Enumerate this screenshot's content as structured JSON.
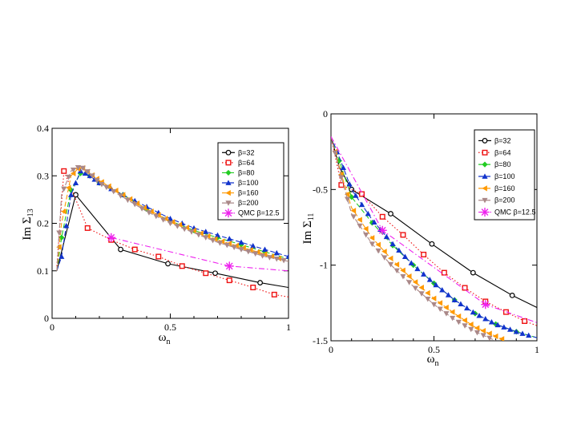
{
  "chart_data": [
    {
      "type": "line",
      "ylabel": "Im Σ13",
      "xlabel": "ωn",
      "xlim": [
        0,
        1
      ],
      "ylim": [
        0,
        0.4
      ],
      "xticks": [
        "0",
        "0.5",
        "1"
      ],
      "yticks": [
        "0",
        "0.1",
        "0.2",
        "0.3",
        "0.4"
      ],
      "grid": false,
      "legend_position": "top-right",
      "series": [
        {
          "name": "β=32",
          "color": "#000000",
          "marker": "circle",
          "dash": "solid",
          "x": [
            0.02,
            0.1,
            0.29,
            0.49,
            0.69,
            0.88,
            1.0
          ],
          "y": [
            0.1,
            0.26,
            0.145,
            0.115,
            0.095,
            0.075,
            0.065
          ],
          "mx": [
            0.1,
            0.29,
            0.49,
            0.69,
            0.88
          ]
        },
        {
          "name": "β=64",
          "color": "#ee1111",
          "marker": "square",
          "dash": "dotted",
          "x": [
            0.02,
            0.05,
            0.15,
            0.25,
            0.35,
            0.45,
            0.55,
            0.65,
            0.75,
            0.85,
            0.94,
            1.0
          ],
          "y": [
            0.11,
            0.31,
            0.19,
            0.165,
            0.145,
            0.13,
            0.11,
            0.095,
            0.08,
            0.065,
            0.05,
            0.045
          ],
          "mx": [
            0.05,
            0.15,
            0.25,
            0.35,
            0.45,
            0.55,
            0.65,
            0.75,
            0.85,
            0.94
          ]
        },
        {
          "name": "β=80",
          "color": "#22cc22",
          "marker": "diamond",
          "dash": "dashed",
          "x": [
            0.02,
            0.04,
            0.08,
            0.12,
            0.16,
            0.2,
            0.3,
            0.4,
            0.5,
            0.6,
            0.7,
            0.8,
            0.9,
            1.0
          ],
          "y": [
            0.1,
            0.17,
            0.27,
            0.305,
            0.3,
            0.285,
            0.26,
            0.23,
            0.205,
            0.185,
            0.17,
            0.155,
            0.14,
            0.125
          ],
          "mx": [
            0.04,
            0.08,
            0.12,
            0.16,
            0.2,
            0.3,
            0.4,
            0.5,
            0.6,
            0.7,
            0.8,
            0.9
          ]
        },
        {
          "name": "β=100",
          "color": "#1133cc",
          "marker": "triangle-up",
          "dash": "dashed",
          "x": [
            0.02,
            0.04,
            0.08,
            0.12,
            0.16,
            0.2,
            0.3,
            0.4,
            0.5,
            0.6,
            0.7,
            0.8,
            0.9,
            1.0
          ],
          "y": [
            0.1,
            0.13,
            0.26,
            0.31,
            0.3,
            0.285,
            0.26,
            0.235,
            0.21,
            0.19,
            0.175,
            0.16,
            0.145,
            0.13
          ],
          "mx": [
            0.04,
            0.06,
            0.08,
            0.1,
            0.12,
            0.14,
            0.16,
            0.18,
            0.2,
            0.25,
            0.3,
            0.35,
            0.4,
            0.45,
            0.5,
            0.55,
            0.6,
            0.65,
            0.7,
            0.75,
            0.8,
            0.85,
            0.9,
            0.95,
            1.0
          ]
        },
        {
          "name": "β=160",
          "color": "#ff9900",
          "marker": "triangle-left",
          "dash": "dashed",
          "x": [
            0.02,
            0.04,
            0.08,
            0.12,
            0.16,
            0.2,
            0.3,
            0.4,
            0.5,
            0.6,
            0.7,
            0.8,
            0.9,
            1.0
          ],
          "y": [
            0.1,
            0.2,
            0.3,
            0.32,
            0.305,
            0.29,
            0.26,
            0.23,
            0.205,
            0.185,
            0.165,
            0.15,
            0.135,
            0.12
          ],
          "mx": [
            0.03,
            0.05,
            0.07,
            0.09,
            0.11,
            0.13,
            0.15,
            0.17,
            0.19,
            0.21,
            0.24,
            0.27,
            0.3,
            0.33,
            0.36,
            0.39,
            0.42,
            0.45,
            0.48,
            0.51,
            0.54,
            0.57,
            0.6,
            0.63,
            0.66,
            0.69,
            0.72,
            0.75,
            0.78,
            0.81,
            0.84,
            0.87,
            0.9,
            0.93,
            0.96
          ]
        },
        {
          "name": "β=200",
          "color": "#aa8888",
          "marker": "triangle-down",
          "dash": "dashed",
          "x": [
            0.02,
            0.04,
            0.08,
            0.12,
            0.16,
            0.2,
            0.3,
            0.4,
            0.5,
            0.6,
            0.7,
            0.8,
            0.9,
            1.0
          ],
          "y": [
            0.1,
            0.26,
            0.31,
            0.32,
            0.305,
            0.285,
            0.255,
            0.225,
            0.2,
            0.18,
            0.16,
            0.145,
            0.13,
            0.12
          ],
          "mx": [
            0.03,
            0.05,
            0.07,
            0.09,
            0.11,
            0.13,
            0.15,
            0.17,
            0.19,
            0.21,
            0.23,
            0.26,
            0.29,
            0.32,
            0.35,
            0.38,
            0.41,
            0.44,
            0.47,
            0.5,
            0.53,
            0.56,
            0.59,
            0.62,
            0.65,
            0.68,
            0.71,
            0.74,
            0.77,
            0.8,
            0.83,
            0.86,
            0.89,
            0.92,
            0.95,
            0.98
          ]
        },
        {
          "name": "QMC β=12.5",
          "color": "#ee22ee",
          "marker": "star",
          "dash": "dashdot",
          "x": [
            0.25,
            0.75,
            1.0
          ],
          "y": [
            0.17,
            0.11,
            0.1
          ],
          "mx": [
            0.25,
            0.75
          ]
        }
      ]
    },
    {
      "type": "line",
      "ylabel": "Im Σ11",
      "xlabel": "ωn",
      "xlim": [
        0,
        1
      ],
      "ylim": [
        -1.5,
        0
      ],
      "xticks": [
        "0",
        "0.5",
        "1"
      ],
      "yticks": [
        "0",
        "-0.5",
        "-1",
        "-1.5"
      ],
      "grid": false,
      "legend_position": "top-right",
      "series": [
        {
          "name": "β=32",
          "color": "#000000",
          "marker": "circle",
          "dash": "solid",
          "x": [
            0.0,
            0.04,
            0.1,
            0.29,
            0.49,
            0.69,
            0.88,
            1.0
          ],
          "y": [
            -0.15,
            -0.35,
            -0.5,
            -0.66,
            -0.86,
            -1.05,
            -1.2,
            -1.28
          ],
          "mx": [
            0.1,
            0.29,
            0.49,
            0.69,
            0.88
          ]
        },
        {
          "name": "β=64",
          "color": "#ee1111",
          "marker": "square",
          "dash": "dotted",
          "x": [
            0.0,
            0.05,
            0.15,
            0.25,
            0.35,
            0.45,
            0.55,
            0.65,
            0.75,
            0.85,
            0.94,
            1.0
          ],
          "y": [
            -0.15,
            -0.47,
            -0.53,
            -0.68,
            -0.8,
            -0.93,
            -1.05,
            -1.15,
            -1.24,
            -1.31,
            -1.37,
            -1.4
          ],
          "mx": [
            0.05,
            0.15,
            0.25,
            0.35,
            0.45,
            0.55,
            0.65,
            0.75,
            0.85,
            0.94
          ]
        },
        {
          "name": "β=80",
          "color": "#22cc22",
          "marker": "diamond",
          "dash": "dashed",
          "x": [
            0.0,
            0.05,
            0.1,
            0.2,
            0.3,
            0.4,
            0.5,
            0.6,
            0.7,
            0.8,
            0.9,
            1.0
          ],
          "y": [
            -0.15,
            -0.35,
            -0.55,
            -0.72,
            -0.87,
            -1.0,
            -1.12,
            -1.23,
            -1.32,
            -1.39,
            -1.44,
            -1.48
          ],
          "mx": [
            0.04,
            0.1,
            0.2,
            0.3,
            0.4,
            0.5,
            0.6,
            0.7,
            0.8,
            0.9
          ]
        },
        {
          "name": "β=100",
          "color": "#1133cc",
          "marker": "triangle-up",
          "dash": "dashed",
          "x": [
            0.0,
            0.05,
            0.1,
            0.2,
            0.3,
            0.4,
            0.5,
            0.6,
            0.7,
            0.8,
            0.9,
            1.0
          ],
          "y": [
            -0.15,
            -0.32,
            -0.5,
            -0.7,
            -0.86,
            -1.0,
            -1.12,
            -1.23,
            -1.32,
            -1.39,
            -1.44,
            -1.48
          ],
          "mx": [
            0.03,
            0.06,
            0.09,
            0.12,
            0.15,
            0.18,
            0.21,
            0.24,
            0.27,
            0.3,
            0.33,
            0.36,
            0.39,
            0.42,
            0.45,
            0.48,
            0.51,
            0.54,
            0.57,
            0.6,
            0.63,
            0.66,
            0.69,
            0.72,
            0.75,
            0.78,
            0.81,
            0.84,
            0.87,
            0.9,
            0.93,
            0.96
          ]
        },
        {
          "name": "β=160",
          "color": "#ff9900",
          "marker": "triangle-left",
          "dash": "dashed",
          "x": [
            0.0,
            0.05,
            0.1,
            0.2,
            0.3,
            0.4,
            0.5,
            0.6,
            0.7,
            0.8,
            0.85
          ],
          "y": [
            -0.15,
            -0.4,
            -0.62,
            -0.82,
            -0.97,
            -1.1,
            -1.22,
            -1.32,
            -1.41,
            -1.47,
            -1.5
          ],
          "mx": [
            0.02,
            0.05,
            0.08,
            0.11,
            0.14,
            0.17,
            0.2,
            0.23,
            0.26,
            0.29,
            0.32,
            0.35,
            0.38,
            0.41,
            0.44,
            0.47,
            0.5,
            0.53,
            0.56,
            0.59,
            0.62,
            0.65,
            0.68,
            0.71,
            0.74,
            0.77,
            0.8,
            0.83
          ]
        },
        {
          "name": "β=200",
          "color": "#aa8888",
          "marker": "triangle-down",
          "dash": "dashed",
          "x": [
            0.0,
            0.05,
            0.1,
            0.2,
            0.3,
            0.4,
            0.5,
            0.6,
            0.7,
            0.8
          ],
          "y": [
            -0.15,
            -0.42,
            -0.66,
            -0.86,
            -1.01,
            -1.14,
            -1.26,
            -1.36,
            -1.44,
            -1.5
          ],
          "mx": [
            0.02,
            0.05,
            0.08,
            0.11,
            0.14,
            0.17,
            0.2,
            0.23,
            0.26,
            0.29,
            0.32,
            0.35,
            0.38,
            0.41,
            0.44,
            0.47,
            0.5,
            0.53,
            0.56,
            0.59,
            0.62,
            0.65,
            0.68,
            0.71,
            0.74,
            0.77
          ]
        },
        {
          "name": "QMC β=12.5",
          "color": "#ee22ee",
          "marker": "star",
          "dash": "dashdot",
          "x": [
            0.0,
            0.25,
            0.75,
            1.0
          ],
          "y": [
            -0.15,
            -0.77,
            -1.26,
            -1.38
          ],
          "mx": [
            0.25,
            0.75
          ]
        }
      ]
    }
  ]
}
